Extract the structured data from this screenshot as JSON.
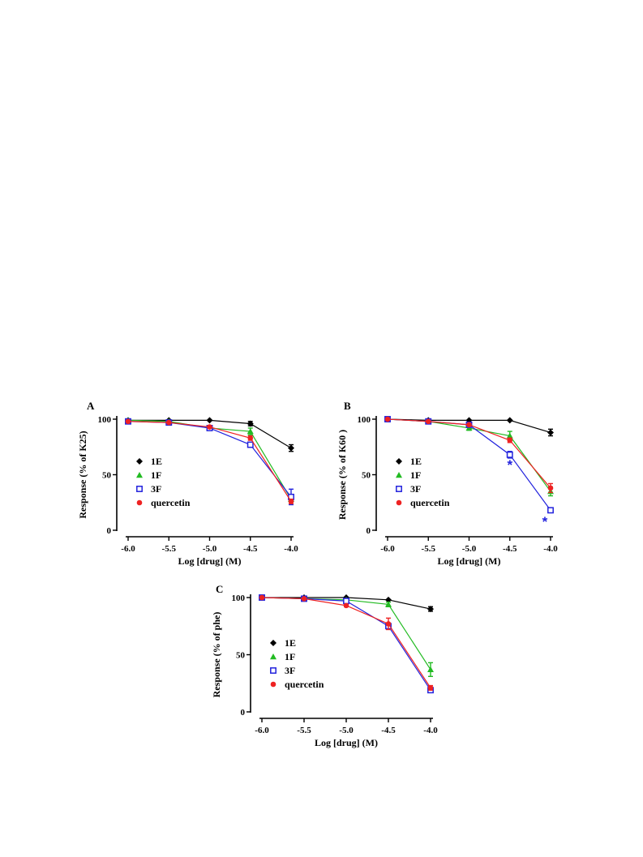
{
  "colors": {
    "1E": "#000000",
    "1F": "#22bb22",
    "3F": "#2222dd",
    "quercetin": "#ee2222"
  },
  "markers": {
    "1E": "diamond",
    "1F": "triangle",
    "3F": "open-square",
    "quercetin": "circle"
  },
  "chart_data": [
    {
      "panel": "A",
      "type": "line",
      "xlabel": "Log [drug] (M)",
      "ylabel": "Response (% of K25)",
      "x_ticks": [
        "-6.0",
        "-5.5",
        "-5.0",
        "-4.5",
        "-4.0"
      ],
      "y_ticks": [
        "0",
        "50",
        "100"
      ],
      "xlim": [
        -6.0,
        -4.0
      ],
      "ylim": [
        0,
        100
      ],
      "legend": [
        "1E",
        "1F",
        "3F",
        "quercetin"
      ],
      "legend_position": "left-middle",
      "x": [
        -6.0,
        -5.5,
        -5.0,
        -4.5,
        -4.0
      ],
      "series": [
        {
          "name": "1E",
          "values": [
            99,
            99,
            99,
            96,
            74
          ],
          "errors": [
            0,
            0,
            0,
            2,
            3
          ]
        },
        {
          "name": "1F",
          "values": [
            99,
            98,
            92,
            89,
            28
          ],
          "errors": [
            0,
            0,
            1,
            3,
            4
          ]
        },
        {
          "name": "3F",
          "values": [
            98,
            97,
            92,
            77,
            30
          ],
          "errors": [
            0,
            0,
            1,
            2,
            7
          ]
        },
        {
          "name": "quercetin",
          "values": [
            98,
            97,
            93,
            83,
            26
          ],
          "errors": [
            0,
            0,
            1,
            2,
            2
          ]
        }
      ],
      "annotations": []
    },
    {
      "panel": "B",
      "type": "line",
      "xlabel": "Log [drug] (M)",
      "ylabel": "Response (% of K60 )",
      "x_ticks": [
        "-6.0",
        "-5.5",
        "-5.0",
        "-4.5",
        "-4.0"
      ],
      "y_ticks": [
        "0",
        "50",
        "100"
      ],
      "xlim": [
        -6.0,
        -4.0
      ],
      "ylim": [
        0,
        100
      ],
      "legend": [
        "1E",
        "1F",
        "3F",
        "quercetin"
      ],
      "legend_position": "left-middle",
      "x": [
        -6.0,
        -5.5,
        -5.0,
        -4.5,
        -4.0
      ],
      "series": [
        {
          "name": "1E",
          "values": [
            100,
            99,
            99,
            99,
            88
          ],
          "errors": [
            0,
            0,
            0,
            0,
            3
          ]
        },
        {
          "name": "1F",
          "values": [
            100,
            98,
            92,
            85,
            35
          ],
          "errors": [
            0,
            0,
            2,
            4,
            4
          ]
        },
        {
          "name": "3F",
          "values": [
            100,
            98,
            95,
            68,
            18
          ],
          "errors": [
            0,
            0,
            1,
            3,
            2
          ]
        },
        {
          "name": "quercetin",
          "values": [
            100,
            98,
            95,
            81,
            38
          ],
          "errors": [
            0,
            0,
            1,
            2,
            4
          ]
        }
      ],
      "annotations": [
        {
          "text": "*",
          "series": "3F",
          "x": -4.5,
          "y": 59
        },
        {
          "text": "*",
          "series": "3F",
          "x": -4.07,
          "y": 8
        }
      ]
    },
    {
      "panel": "C",
      "type": "line",
      "xlabel": "Log [drug] (M)",
      "ylabel": "Response (% of phe)",
      "x_ticks": [
        "-6.0",
        "-5.5",
        "-5.0",
        "-4.5",
        "-4.0"
      ],
      "y_ticks": [
        "0",
        "50",
        "100"
      ],
      "xlim": [
        -6.0,
        -4.0
      ],
      "ylim": [
        0,
        100
      ],
      "legend": [
        "1E",
        "1F",
        "3F",
        "quercetin"
      ],
      "legend_position": "left-middle",
      "x": [
        -6.0,
        -5.5,
        -5.0,
        -4.5,
        -4.0
      ],
      "series": [
        {
          "name": "1E",
          "values": [
            100,
            100,
            100,
            98,
            90
          ],
          "errors": [
            0,
            0,
            0,
            0,
            2
          ]
        },
        {
          "name": "1F",
          "values": [
            100,
            99,
            98,
            94,
            37
          ],
          "errors": [
            0,
            0,
            0,
            2,
            6
          ]
        },
        {
          "name": "3F",
          "values": [
            100,
            99,
            97,
            75,
            19
          ],
          "errors": [
            0,
            0,
            1,
            2,
            2
          ]
        },
        {
          "name": "quercetin",
          "values": [
            100,
            99,
            93,
            77,
            21
          ],
          "errors": [
            0,
            0,
            1,
            5,
            2
          ]
        }
      ],
      "annotations": []
    }
  ]
}
